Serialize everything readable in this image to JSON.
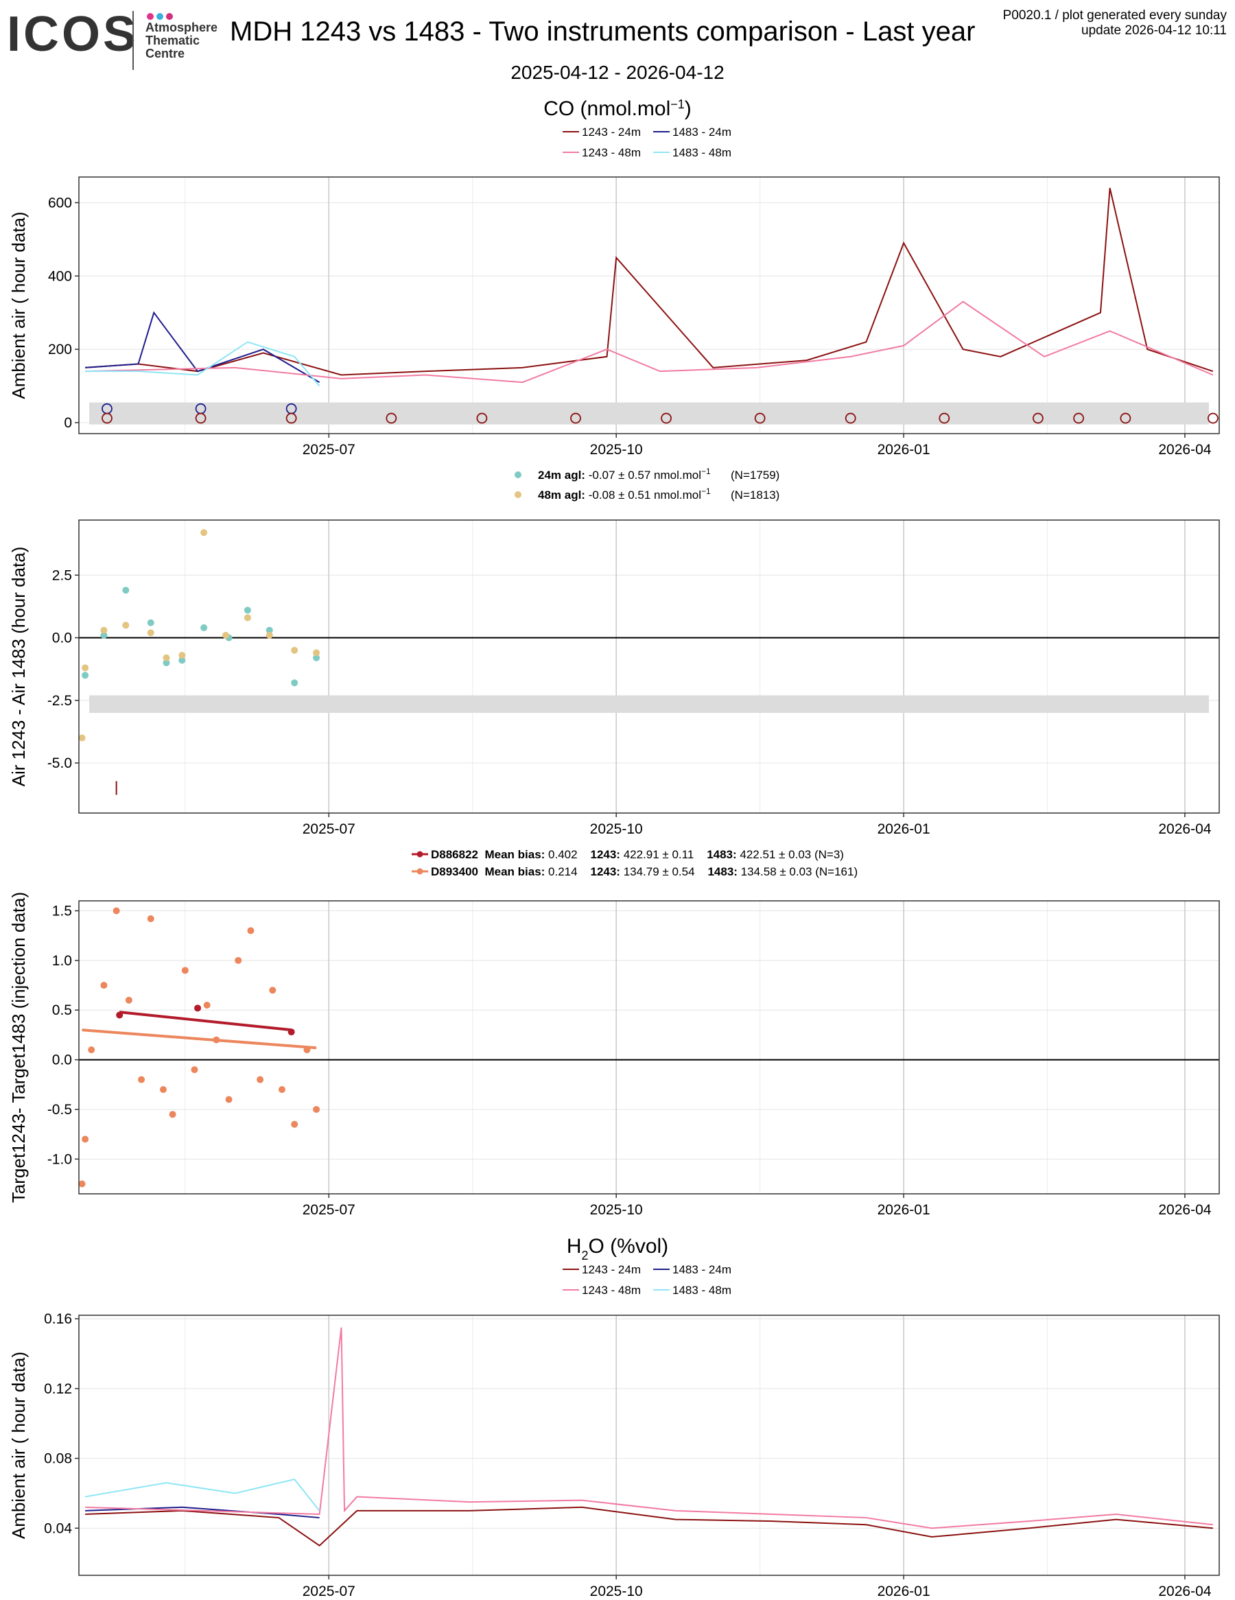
{
  "header": {
    "logo_text": "ICOS",
    "logo_sub": [
      "Atmosphere",
      "Thematic",
      "Centre"
    ],
    "logo_dot_colors": [
      "#e0338a",
      "#3ab0e2",
      "#d1307c"
    ],
    "title": "MDH 1243 vs 1483 - Two instruments comparison - Last year",
    "meta_line1": "P0020.1 / plot generated every sunday",
    "meta_line2": "update  2026-04-12 10:11",
    "date_range": "2025-04-12 - 2026-04-12"
  },
  "co_section": {
    "title_main": "CO (nmol.mol",
    "title_sup": "−1",
    "title_end": ")",
    "legend": [
      {
        "label": "1243 - 24m",
        "color": "#8b1010"
      },
      {
        "label": "1483 - 24m",
        "color": "#1c1c8c"
      },
      {
        "label": "1243 - 48m",
        "color": "#f27aa0"
      },
      {
        "label": "1483 - 48m",
        "color": "#8ee6f6"
      }
    ]
  },
  "x_axis": {
    "start": "2025-04-12",
    "end": "2026-04-12",
    "tick_labels": [
      "2025-07",
      "2025-10",
      "2026-01",
      "2026-04"
    ],
    "tick_dates": [
      "2025-07-01",
      "2025-10-01",
      "2026-01-01",
      "2026-04-01"
    ],
    "minor_dates": [
      "2025-05-16",
      "2025-08-16",
      "2025-11-16",
      "2026-02-16"
    ]
  },
  "chart_data": [
    {
      "id": "co-ambient",
      "type": "line",
      "ylabel": "Ambient air ( hour data)",
      "ylim": [
        -30,
        670
      ],
      "yticks": [
        0,
        200,
        400,
        600
      ],
      "grid": true,
      "reference_band": [
        -5,
        55
      ],
      "series": [
        {
          "name": "1243 - 24m",
          "color": "#8b1010",
          "x": [
            "2025-04-14",
            "2025-05-01",
            "2025-05-20",
            "2025-06-10",
            "2025-07-05",
            "2025-08-01",
            "2025-09-01",
            "2025-09-28",
            "2025-10-01",
            "2025-11-01",
            "2025-12-01",
            "2025-12-20",
            "2026-01-01",
            "2026-01-20",
            "2026-02-01",
            "2026-03-05",
            "2026-03-08",
            "2026-03-20",
            "2026-04-10"
          ],
          "y": [
            150,
            160,
            140,
            190,
            130,
            140,
            150,
            180,
            450,
            150,
            170,
            220,
            490,
            200,
            180,
            300,
            640,
            200,
            140
          ]
        },
        {
          "name": "1483 - 24m",
          "color": "#1c1c8c",
          "x": [
            "2025-04-14",
            "2025-05-01",
            "2025-05-06",
            "2025-05-20",
            "2025-06-10",
            "2025-06-28"
          ],
          "y": [
            150,
            160,
            300,
            140,
            200,
            110
          ]
        },
        {
          "name": "1243 - 48m",
          "color": "#f27aa0",
          "x": [
            "2025-04-14",
            "2025-06-01",
            "2025-07-05",
            "2025-08-01",
            "2025-09-01",
            "2025-09-28",
            "2025-10-15",
            "2025-11-15",
            "2025-12-15",
            "2026-01-01",
            "2026-01-20",
            "2026-02-15",
            "2026-03-08",
            "2026-04-10"
          ],
          "y": [
            140,
            150,
            120,
            130,
            110,
            200,
            140,
            150,
            180,
            210,
            330,
            180,
            250,
            130
          ]
        },
        {
          "name": "1483 - 48m",
          "color": "#8ee6f6",
          "x": [
            "2025-04-14",
            "2025-05-01",
            "2025-05-20",
            "2025-06-05",
            "2025-06-20",
            "2025-06-28"
          ],
          "y": [
            140,
            140,
            130,
            220,
            180,
            100
          ]
        }
      ],
      "markers_1483": {
        "color": "#1c1c8c",
        "x": [
          "2025-04-21",
          "2025-05-21",
          "2025-06-19"
        ],
        "y": [
          38,
          38,
          38
        ]
      },
      "markers_1243": {
        "color": "#8b1010",
        "x": [
          "2025-04-21",
          "2025-05-21",
          "2025-06-19",
          "2025-07-21",
          "2025-08-19",
          "2025-09-18",
          "2025-10-17",
          "2025-11-16",
          "2025-12-15",
          "2026-01-14",
          "2026-02-13",
          "2026-02-26",
          "2026-03-13",
          "2026-04-10"
        ],
        "y": [
          12,
          12,
          12,
          12,
          12,
          12,
          12,
          12,
          12,
          12,
          12,
          12,
          12,
          12
        ]
      }
    },
    {
      "id": "co-diff",
      "type": "scatter",
      "ylabel": "Air 1243 - Air 1483 (hour data)",
      "ylim": [
        -7,
        4.7
      ],
      "yticks": [
        -5.0,
        -2.5,
        0.0,
        2.5
      ],
      "ytick_labels": [
        "-5.0",
        "-2.5",
        "0.0",
        "2.5"
      ],
      "zero_line": true,
      "grid": true,
      "reference_band": [
        -3.0,
        -2.3
      ],
      "legend": [
        {
          "label_bold": "24m agl:",
          "label": " -0.07 ± 0.57 nmol.mol",
          "sup": "−1",
          "n": "(N=1759)",
          "color": "#7ecbc3"
        },
        {
          "label_bold": "48m agl:",
          "label": " -0.08 ± 0.51 nmol.mol",
          "sup": "−1",
          "n": "(N=1813)",
          "color": "#e3c481"
        }
      ],
      "series": [
        {
          "name": "24m agl",
          "color": "#7ecbc3",
          "x": [
            "2025-04-14",
            "2025-04-20",
            "2025-04-27",
            "2025-05-05",
            "2025-05-10",
            "2025-05-15",
            "2025-05-22",
            "2025-05-30",
            "2025-06-05",
            "2025-06-12",
            "2025-06-20",
            "2025-06-27"
          ],
          "y": [
            -1.5,
            0.1,
            1.9,
            0.6,
            -1.0,
            -0.9,
            0.4,
            0.0,
            1.1,
            0.3,
            -1.8,
            -0.8
          ]
        },
        {
          "name": "48m agl",
          "color": "#e3c481",
          "x": [
            "2025-04-13",
            "2025-04-14",
            "2025-04-20",
            "2025-04-27",
            "2025-05-05",
            "2025-05-10",
            "2025-05-15",
            "2025-05-22",
            "2025-05-29",
            "2025-06-05",
            "2025-06-12",
            "2025-06-20",
            "2025-06-27"
          ],
          "y": [
            -4.0,
            -1.2,
            0.3,
            0.5,
            0.2,
            -0.8,
            -0.7,
            4.2,
            0.1,
            0.8,
            0.1,
            -0.5,
            -0.6
          ]
        }
      ],
      "outlier_tick": {
        "x": "2025-04-24",
        "y": -6.0,
        "color": "#8b1010"
      }
    },
    {
      "id": "co-target",
      "type": "scatter",
      "ylabel": "Target1243- Target1483 (injection data)",
      "ylim": [
        -1.35,
        1.6
      ],
      "yticks": [
        -1.0,
        -0.5,
        0.0,
        0.5,
        1.0,
        1.5
      ],
      "ytick_labels": [
        "-1.0",
        "-0.5",
        "0.0",
        "0.5",
        "1.0",
        "1.5"
      ],
      "zero_line": true,
      "grid": true,
      "legend": [
        {
          "id": "D886822",
          "mean_label": "Mean bias:",
          "mean": "0.402",
          "a_label": "1243:",
          "a": "422.91 ± 0.11",
          "b_label": "1483:",
          "b": "422.51 ± 0.03 (N=3)",
          "color": "#b31b2b"
        },
        {
          "id": "D893400",
          "mean_label": "Mean bias:",
          "mean": "0.214",
          "a_label": "1243:",
          "a": "134.79 ± 0.54",
          "b_label": "1483:",
          "b": "134.58 ± 0.03 (N=161)",
          "color": "#ec865c"
        }
      ],
      "series": [
        {
          "name": "D886822",
          "color": "#b31b2b",
          "x": [
            "2025-04-25",
            "2025-05-20",
            "2025-06-19"
          ],
          "y": [
            0.45,
            0.52,
            0.28
          ],
          "trend_x": [
            "2025-04-25",
            "2025-06-19"
          ],
          "trend_y": [
            0.48,
            0.3
          ]
        },
        {
          "name": "D893400",
          "color": "#ec865c",
          "x": [
            "2025-04-13",
            "2025-04-14",
            "2025-04-16",
            "2025-04-20",
            "2025-04-24",
            "2025-04-28",
            "2025-05-02",
            "2025-05-05",
            "2025-05-09",
            "2025-05-12",
            "2025-05-16",
            "2025-05-19",
            "2025-05-23",
            "2025-05-26",
            "2025-05-30",
            "2025-06-02",
            "2025-06-06",
            "2025-06-09",
            "2025-06-13",
            "2025-06-16",
            "2025-06-20",
            "2025-06-24",
            "2025-06-27"
          ],
          "y": [
            -1.25,
            -0.8,
            0.1,
            0.75,
            1.5,
            0.6,
            -0.2,
            1.42,
            -0.3,
            -0.55,
            0.9,
            -0.1,
            0.55,
            0.2,
            -0.4,
            1.0,
            1.3,
            -0.2,
            0.7,
            -0.3,
            -0.65,
            0.1,
            -0.5
          ],
          "trend_x": [
            "2025-04-13",
            "2025-06-27"
          ],
          "trend_y": [
            0.3,
            0.12
          ]
        }
      ]
    },
    {
      "id": "h2o-ambient",
      "type": "line",
      "title_main": "H",
      "title_sub": "2",
      "title_end": "O (%vol)",
      "legend": [
        {
          "label": "1243 - 24m",
          "color": "#8b1010"
        },
        {
          "label": "1483 - 24m",
          "color": "#1c1c8c"
        },
        {
          "label": "1243 - 48m",
          "color": "#f27aa0"
        },
        {
          "label": "1483 - 48m",
          "color": "#8ee6f6"
        }
      ],
      "ylabel": "Ambient air ( hour data)",
      "ylim": [
        0.013,
        0.162
      ],
      "yticks": [
        0.04,
        0.08,
        0.12,
        0.16
      ],
      "ytick_labels": [
        "0.04",
        "0.08",
        "0.12",
        "0.16"
      ],
      "grid": true,
      "series": [
        {
          "name": "1243 - 24m",
          "color": "#8b1010",
          "x": [
            "2025-04-14",
            "2025-05-15",
            "2025-06-15",
            "2025-06-28",
            "2025-07-10",
            "2025-08-15",
            "2025-09-20",
            "2025-10-20",
            "2025-11-20",
            "2025-12-20",
            "2026-01-10",
            "2026-02-10",
            "2026-03-10",
            "2026-04-10"
          ],
          "y": [
            0.048,
            0.05,
            0.046,
            0.03,
            0.05,
            0.05,
            0.052,
            0.045,
            0.044,
            0.042,
            0.035,
            0.04,
            0.045,
            0.04
          ]
        },
        {
          "name": "1483 - 24m",
          "color": "#1c1c8c",
          "x": [
            "2025-04-14",
            "2025-05-15",
            "2025-06-15",
            "2025-06-28"
          ],
          "y": [
            0.05,
            0.052,
            0.048,
            0.046
          ]
        },
        {
          "name": "1243 - 48m",
          "color": "#f27aa0",
          "x": [
            "2025-04-14",
            "2025-06-28",
            "2025-07-05",
            "2025-07-06",
            "2025-07-10",
            "2025-08-15",
            "2025-09-20",
            "2025-10-20",
            "2025-11-20",
            "2025-12-20",
            "2026-01-10",
            "2026-02-10",
            "2026-03-10",
            "2026-04-10"
          ],
          "y": [
            0.052,
            0.048,
            0.155,
            0.05,
            0.058,
            0.055,
            0.056,
            0.05,
            0.048,
            0.046,
            0.04,
            0.044,
            0.048,
            0.042
          ]
        },
        {
          "name": "1483 - 48m",
          "color": "#8ee6f6",
          "x": [
            "2025-04-14",
            "2025-05-10",
            "2025-06-01",
            "2025-06-20",
            "2025-06-28"
          ],
          "y": [
            0.058,
            0.066,
            0.06,
            0.068,
            0.05
          ]
        }
      ]
    }
  ]
}
